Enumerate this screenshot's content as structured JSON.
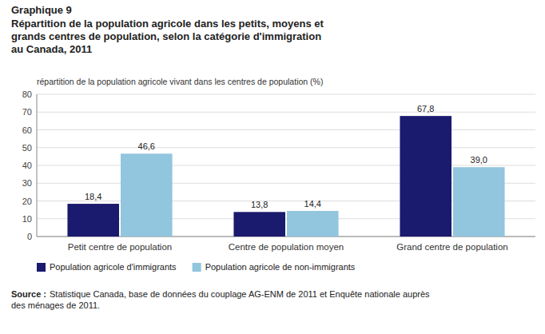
{
  "chart_data": {
    "type": "bar",
    "title": "Graphique 9",
    "subtitle": "Répartition de la population agricole dans les petits, moyens et\ngrands centres de population, selon la catégorie d'immigration\nau Canada, 2011",
    "y_label": "répartition de la population agricole vivant dans les centres de population (%)",
    "categories": [
      "Petit centre de population",
      "Centre de population moyen",
      "Grand centre de population"
    ],
    "series": [
      {
        "name": "Population agricole d'immigrants",
        "color": "#1a1a6e",
        "values": [
          18.4,
          13.8,
          67.8
        ],
        "value_labels": [
          "18,4",
          "13,8",
          "67,8"
        ]
      },
      {
        "name": "Population agricole de non-immigrants",
        "color": "#92c5de",
        "values": [
          46.6,
          14.4,
          39.0
        ],
        "value_labels": [
          "46,6",
          "14,4",
          "39,0"
        ]
      }
    ],
    "ylim": [
      0,
      80
    ],
    "yticks": [
      0,
      10,
      20,
      30,
      40,
      50,
      60,
      70,
      80
    ],
    "grid": true,
    "data_labels": true,
    "legend": "lower left",
    "annotations": [
      "Source :",
      "Statistique Canada, base de données du couplage AG-ENM de 2011 et Enquête nationale auprès\ndes ménages de 2011."
    ]
  }
}
